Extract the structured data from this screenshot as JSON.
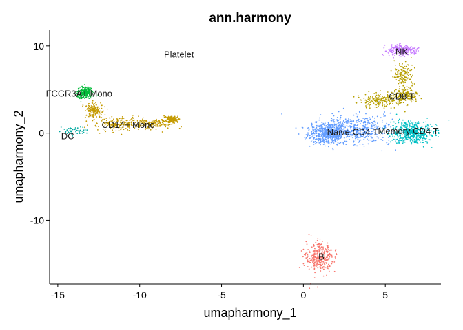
{
  "chart_data": {
    "type": "scatter",
    "title": "ann.harmony",
    "xlabel": "umapharmony_1",
    "ylabel": "umapharmony_2",
    "xlim": [
      -15.5,
      8.4
    ],
    "ylim": [
      -17.3,
      11.8
    ],
    "xticks": [
      -15,
      -10,
      -5,
      0,
      5
    ],
    "xtick_labels": [
      "-15",
      "-10",
      "-5",
      "0",
      "5"
    ],
    "yticks": [
      -10,
      0,
      10
    ],
    "ytick_labels": [
      "-10",
      "0",
      "10"
    ],
    "grid": false,
    "legend": "none",
    "clusters": [
      {
        "name": "B",
        "color": "#F8766D",
        "center": [
          1.0,
          -14.3
        ],
        "label_pos": [
          1.1,
          -14.2
        ],
        "points": 320,
        "shape": [
          {
            "c": [
              1.0,
              -14.2
            ],
            "r": [
              0.9,
              1.9
            ]
          }
        ]
      },
      {
        "name": "Naive CD4 T",
        "color": "#619CFF",
        "center": [
          3.0,
          0.3
        ],
        "label_pos": [
          3.0,
          0.1
        ],
        "points": 1100,
        "shape": [
          {
            "c": [
              3.2,
              0.4
            ],
            "r": [
              2.6,
              1.8
            ]
          },
          {
            "c": [
              1.5,
              0.0
            ],
            "r": [
              1.2,
              1.3
            ]
          }
        ]
      },
      {
        "name": "Memory CD4 T",
        "color": "#00BFC4",
        "center": [
          6.6,
          0.1
        ],
        "label_pos": [
          6.4,
          0.2
        ],
        "points": 520,
        "shape": [
          {
            "c": [
              6.6,
              0.1
            ],
            "r": [
              1.4,
              1.4
            ]
          }
        ]
      },
      {
        "name": "CD8 T",
        "color": "#B79F00",
        "center": [
          5.3,
          3.8
        ],
        "label_pos": [
          6.0,
          4.2
        ],
        "points": 520,
        "shape": [
          {
            "c": [
              6.1,
              6.6
            ],
            "r": [
              0.6,
              1.6
            ]
          },
          {
            "c": [
              4.7,
              3.7
            ],
            "r": [
              1.4,
              0.9
            ]
          },
          {
            "c": [
              6.2,
              4.3
            ],
            "r": [
              0.9,
              0.9
            ]
          }
        ]
      },
      {
        "name": "NK",
        "color": "#C77CFF",
        "center": [
          6.1,
          9.4
        ],
        "label_pos": [
          6.0,
          9.3
        ],
        "points": 220,
        "shape": [
          {
            "c": [
              6.0,
              9.5
            ],
            "r": [
              1.0,
              0.6
            ]
          }
        ]
      },
      {
        "name": "CD14+ Mono",
        "color": "#C49A00",
        "center": [
          -11.0,
          1.3
        ],
        "label_pos": [
          -10.7,
          0.9
        ],
        "points": 620,
        "shape": [
          {
            "c": [
              -12.8,
              2.6
            ],
            "r": [
              0.6,
              1.0
            ]
          },
          {
            "c": [
              -11.3,
              1.1
            ],
            "r": [
              1.8,
              0.9
            ]
          },
          {
            "c": [
              -9.2,
              1.1
            ],
            "r": [
              1.4,
              0.6
            ]
          },
          {
            "c": [
              -8.1,
              1.6
            ],
            "r": [
              0.5,
              0.4
            ]
          }
        ]
      },
      {
        "name": "FCGR3A+ Mono",
        "color": "#00BA38",
        "center": [
          -13.2,
          4.5
        ],
        "label_pos": [
          -13.7,
          4.5
        ],
        "points": 220,
        "shape": [
          {
            "c": [
              -13.3,
              4.7
            ],
            "r": [
              0.55,
              0.8
            ]
          }
        ]
      },
      {
        "name": "DC",
        "color": "#00A9A0",
        "center": [
          -14.0,
          0.0
        ],
        "label_pos": [
          -14.4,
          -0.4
        ],
        "points": 50,
        "shape": [
          {
            "c": [
              -13.9,
              0.2
            ],
            "r": [
              0.8,
              0.5
            ]
          }
        ]
      },
      {
        "name": "Platelet",
        "color": "#FF61C3",
        "center": [
          -7.6,
          9.2
        ],
        "label_pos": [
          -7.6,
          9.0
        ],
        "points": 0,
        "shape": []
      }
    ]
  }
}
